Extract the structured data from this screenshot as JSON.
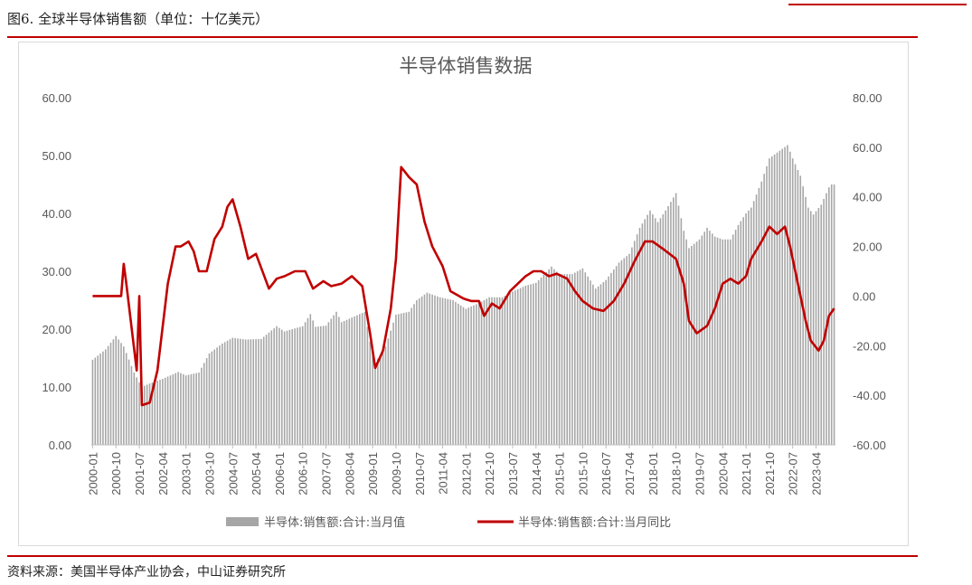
{
  "figure": {
    "title": "图6. 全球半导体销售额（单位：十亿美元）",
    "source": "资料来源：美国半导体产业协会，中山证券研究所"
  },
  "chart_data": {
    "type": "bar+line",
    "title": "半导体销售数据",
    "series": [
      {
        "name": "半导体:销售额:合计:当月值",
        "kind": "bar",
        "axis": "left",
        "color": "#a6a6a6"
      },
      {
        "name": "半导体:销售额:合计:当月同比",
        "kind": "line",
        "axis": "right",
        "color": "#c00000"
      }
    ],
    "y_left": {
      "range": [
        0,
        60
      ],
      "ticks": [
        "0.00",
        "10.00",
        "20.00",
        "30.00",
        "40.00",
        "50.00",
        "60.00"
      ]
    },
    "y_right": {
      "range": [
        -60,
        80
      ],
      "ticks": [
        "-60.00",
        "-40.00",
        "-20.00",
        "0.00",
        "20.00",
        "40.00",
        "60.00",
        "80.00"
      ]
    },
    "x_tick_labels": [
      "2000-01",
      "2000-10",
      "2001-07",
      "2002-04",
      "2003-01",
      "2003-10",
      "2004-07",
      "2005-04",
      "2006-01",
      "2006-10",
      "2007-07",
      "2008-04",
      "2009-01",
      "2009-10",
      "2010-07",
      "2011-04",
      "2012-01",
      "2012-10",
      "2013-07",
      "2014-04",
      "2015-01",
      "2015-10",
      "2016-07",
      "2017-04",
      "2018-01",
      "2018-10",
      "2019-07",
      "2020-04",
      "2021-01",
      "2021-10",
      "2022-07",
      "2023-04"
    ],
    "start_month": "2000-01",
    "bar_keypoints": [
      [
        "2000-01",
        14.7
      ],
      [
        "2000-06",
        16.5
      ],
      [
        "2000-10",
        18.8
      ],
      [
        "2001-01",
        17.0
      ],
      [
        "2001-05",
        12.5
      ],
      [
        "2001-08",
        10.0
      ],
      [
        "2001-11",
        10.6
      ],
      [
        "2002-04",
        11.4
      ],
      [
        "2002-10",
        12.6
      ],
      [
        "2003-01",
        12.0
      ],
      [
        "2003-06",
        12.5
      ],
      [
        "2003-10",
        15.8
      ],
      [
        "2004-03",
        17.5
      ],
      [
        "2004-07",
        18.5
      ],
      [
        "2004-12",
        18.2
      ],
      [
        "2005-06",
        18.3
      ],
      [
        "2005-12",
        20.5
      ],
      [
        "2006-03",
        19.6
      ],
      [
        "2006-10",
        20.5
      ],
      [
        "2007-01",
        22.6
      ],
      [
        "2007-03",
        20.4
      ],
      [
        "2007-07",
        20.6
      ],
      [
        "2007-11",
        23.0
      ],
      [
        "2008-01",
        21.2
      ],
      [
        "2008-06",
        22.2
      ],
      [
        "2008-10",
        23.0
      ],
      [
        "2008-12",
        17.8
      ],
      [
        "2009-02",
        14.2
      ],
      [
        "2009-06",
        17.0
      ],
      [
        "2009-10",
        22.5
      ],
      [
        "2010-03",
        23.0
      ],
      [
        "2010-06",
        25.0
      ],
      [
        "2010-10",
        26.3
      ],
      [
        "2011-03",
        25.5
      ],
      [
        "2011-08",
        25.0
      ],
      [
        "2012-01",
        23.5
      ],
      [
        "2012-06",
        24.5
      ],
      [
        "2012-10",
        25.5
      ],
      [
        "2013-03",
        25.5
      ],
      [
        "2013-07",
        26.5
      ],
      [
        "2013-12",
        27.5
      ],
      [
        "2014-04",
        28.0
      ],
      [
        "2014-10",
        30.8
      ],
      [
        "2015-01",
        29.5
      ],
      [
        "2015-06",
        29.5
      ],
      [
        "2015-10",
        30.5
      ],
      [
        "2016-03",
        27.0
      ],
      [
        "2016-07",
        28.5
      ],
      [
        "2016-12",
        31.5
      ],
      [
        "2017-04",
        33.0
      ],
      [
        "2017-08",
        37.5
      ],
      [
        "2017-12",
        40.5
      ],
      [
        "2018-03",
        38.5
      ],
      [
        "2018-06",
        40.5
      ],
      [
        "2018-10",
        43.5
      ],
      [
        "2019-01",
        37.0
      ],
      [
        "2019-03",
        34.0
      ],
      [
        "2019-07",
        35.5
      ],
      [
        "2019-10",
        37.5
      ],
      [
        "2020-01",
        36.0
      ],
      [
        "2020-04",
        35.5
      ],
      [
        "2020-07",
        35.5
      ],
      [
        "2020-10",
        38.0
      ],
      [
        "2021-01",
        40.0
      ],
      [
        "2021-03",
        41.0
      ],
      [
        "2021-07",
        45.5
      ],
      [
        "2021-10",
        49.5
      ],
      [
        "2022-01",
        50.5
      ],
      [
        "2022-05",
        51.8
      ],
      [
        "2022-07",
        49.5
      ],
      [
        "2022-10",
        46.5
      ],
      [
        "2023-01",
        41.0
      ],
      [
        "2023-03",
        39.8
      ],
      [
        "2023-06",
        41.5
      ],
      [
        "2023-09",
        44.5
      ],
      [
        "2023-10",
        45.0
      ]
    ],
    "line_keypoints": [
      [
        "2000-01",
        0
      ],
      [
        "2000-12",
        0
      ],
      [
        "2001-01",
        13
      ],
      [
        "2001-02",
        5
      ],
      [
        "2001-06",
        -30
      ],
      [
        "2001-07",
        0
      ],
      [
        "2001-08",
        -44
      ],
      [
        "2001-11",
        -43
      ],
      [
        "2002-02",
        -30
      ],
      [
        "2002-06",
        5
      ],
      [
        "2002-09",
        20
      ],
      [
        "2002-11",
        20
      ],
      [
        "2003-02",
        22
      ],
      [
        "2003-04",
        18
      ],
      [
        "2003-06",
        10
      ],
      [
        "2003-09",
        10
      ],
      [
        "2003-12",
        23
      ],
      [
        "2004-03",
        28
      ],
      [
        "2004-05",
        36
      ],
      [
        "2004-07",
        39
      ],
      [
        "2004-10",
        28
      ],
      [
        "2005-01",
        15
      ],
      [
        "2005-04",
        17
      ],
      [
        "2005-09",
        3
      ],
      [
        "2005-12",
        7
      ],
      [
        "2006-03",
        8
      ],
      [
        "2006-07",
        10
      ],
      [
        "2006-11",
        10
      ],
      [
        "2007-02",
        3
      ],
      [
        "2007-06",
        6
      ],
      [
        "2007-09",
        4
      ],
      [
        "2008-01",
        5
      ],
      [
        "2008-05",
        8
      ],
      [
        "2008-09",
        4
      ],
      [
        "2008-12",
        -15
      ],
      [
        "2009-02",
        -29
      ],
      [
        "2009-05",
        -22
      ],
      [
        "2009-08",
        -5
      ],
      [
        "2009-10",
        15
      ],
      [
        "2009-12",
        52
      ],
      [
        "2010-03",
        48
      ],
      [
        "2010-06",
        45
      ],
      [
        "2010-09",
        30
      ],
      [
        "2010-12",
        20
      ],
      [
        "2011-04",
        12
      ],
      [
        "2011-07",
        2
      ],
      [
        "2011-12",
        -1
      ],
      [
        "2012-03",
        -2
      ],
      [
        "2012-06",
        -2
      ],
      [
        "2012-08",
        -8
      ],
      [
        "2012-11",
        -3
      ],
      [
        "2013-02",
        -5
      ],
      [
        "2013-06",
        2
      ],
      [
        "2013-09",
        5
      ],
      [
        "2013-12",
        8
      ],
      [
        "2014-03",
        10
      ],
      [
        "2014-06",
        10
      ],
      [
        "2014-09",
        8
      ],
      [
        "2014-12",
        9
      ],
      [
        "2015-04",
        7
      ],
      [
        "2015-07",
        2
      ],
      [
        "2015-10",
        -2
      ],
      [
        "2016-02",
        -5
      ],
      [
        "2016-06",
        -6
      ],
      [
        "2016-10",
        -2
      ],
      [
        "2017-02",
        5
      ],
      [
        "2017-06",
        14
      ],
      [
        "2017-10",
        22
      ],
      [
        "2018-01",
        22
      ],
      [
        "2018-05",
        19
      ],
      [
        "2018-10",
        15
      ],
      [
        "2019-01",
        5
      ],
      [
        "2019-03",
        -10
      ],
      [
        "2019-06",
        -15
      ],
      [
        "2019-10",
        -12
      ],
      [
        "2020-01",
        -5
      ],
      [
        "2020-04",
        5
      ],
      [
        "2020-07",
        7
      ],
      [
        "2020-10",
        5
      ],
      [
        "2021-01",
        8
      ],
      [
        "2021-03",
        15
      ],
      [
        "2021-07",
        22
      ],
      [
        "2021-10",
        28
      ],
      [
        "2022-01",
        25
      ],
      [
        "2022-04",
        28
      ],
      [
        "2022-06",
        20
      ],
      [
        "2022-08",
        10
      ],
      [
        "2022-12",
        -10
      ],
      [
        "2023-02",
        -18
      ],
      [
        "2023-05",
        -22
      ],
      [
        "2023-07",
        -18
      ],
      [
        "2023-09",
        -8
      ],
      [
        "2023-11",
        -5
      ]
    ]
  }
}
